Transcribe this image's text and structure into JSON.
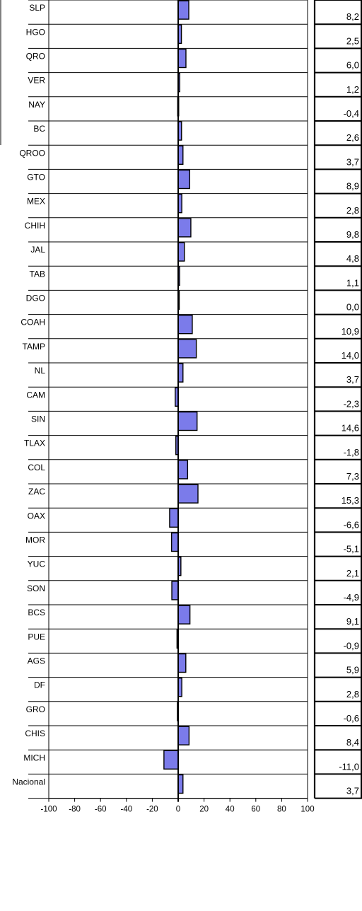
{
  "chart_data": {
    "type": "bar",
    "orientation": "horizontal",
    "categories": [
      "SLP",
      "HGO",
      "QRO",
      "VER",
      "NAY",
      "BC",
      "QROO",
      "GTO",
      "MEX",
      "CHIH",
      "JAL",
      "TAB",
      "DGO",
      "COAH",
      "TAMP",
      "NL",
      "CAM",
      "SIN",
      "TLAX",
      "COL",
      "ZAC",
      "OAX",
      "MOR",
      "YUC",
      "SON",
      "BCS",
      "PUE",
      "AGS",
      "DF",
      "GRO",
      "CHIS",
      "MICH",
      "Nacional"
    ],
    "values": [
      8.2,
      2.5,
      6.0,
      1.2,
      -0.4,
      2.6,
      3.7,
      8.9,
      2.8,
      9.8,
      4.8,
      1.1,
      0.0,
      10.9,
      14.0,
      3.7,
      -2.3,
      14.6,
      -1.8,
      7.3,
      15.3,
      -6.6,
      -5.1,
      2.1,
      -4.9,
      9.1,
      -0.9,
      5.9,
      2.8,
      -0.6,
      8.4,
      -11.0,
      3.7
    ],
    "value_labels": [
      "8,2",
      "2,5",
      "6,0",
      "1,2",
      "-0,4",
      "2,6",
      "3,7",
      "8,9",
      "2,8",
      "9,8",
      "4,8",
      "1,1",
      "0,0",
      "10,9",
      "14,0",
      "3,7",
      "-2,3",
      "14,6",
      "-1,8",
      "7,3",
      "15,3",
      "-6,6",
      "-5,1",
      "2,1",
      "-4,9",
      "9,1",
      "-0,9",
      "5,9",
      "2,8",
      "-0,6",
      "8,4",
      "-11,0",
      "3,7"
    ],
    "xlim": [
      -100,
      100
    ],
    "x_ticks": [
      -100,
      -80,
      -60,
      -40,
      -20,
      0,
      20,
      40,
      60,
      80,
      100
    ],
    "x_tick_labels": [
      "-100",
      "-80",
      "-60",
      "-40",
      "-20",
      "0",
      "20",
      "40",
      "60",
      "80",
      "100"
    ],
    "bar_color": "#7b7bea",
    "grid": true
  }
}
